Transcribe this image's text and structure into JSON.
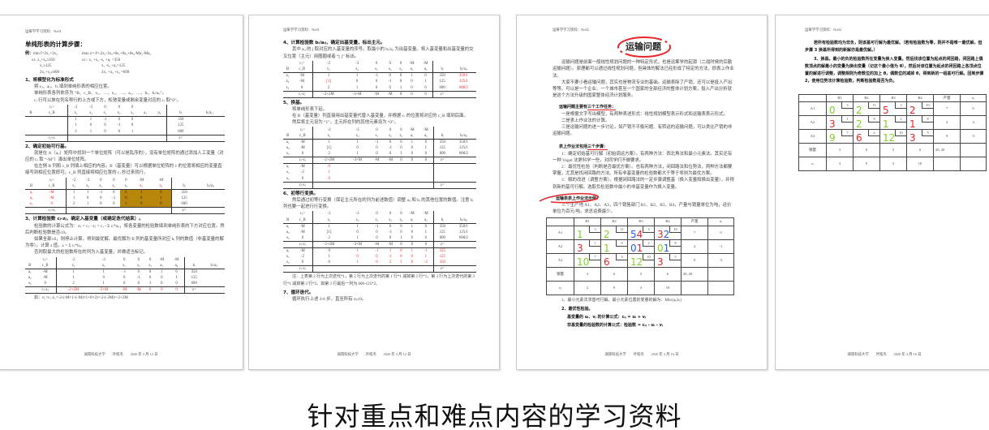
{
  "colors": {
    "handwriting_green": "#7ed321",
    "handwriting_red": "#e5262a",
    "handwriting_blue": "#1b5ef0",
    "highlight": "#b8860b"
  },
  "page1": {
    "header": "运筹学学习资料：No01",
    "title": "单纯形表的计算步骤：",
    "example": {
      "label": "例：",
      "left": [
        "min f=2x₁+3x₂",
        "s.t. x₁+x₂≥350",
        "x₁≥125",
        "2x₁+x₂≤600"
      ],
      "right": [
        "max z=-f=-2x₁-3x₂+0s₁+0s₂+0s₃-Ma₁-Ma₂",
        "s.t.: x₁ +x₂ -s₁ +a₁ =350",
        "x₁ -s₂ +a₂=125",
        "2x₁ +x₂ +s₃ =600"
      ]
    },
    "s1": "1、将模型化为标准形式",
    "p1": [
      "将 cⱼ、aᵢⱼ、bᵢ 填到单纯形表的相应位置。",
      "单纯形表各列依序为 “B、c_B、x₁、…、s₁、…、a₁、…、bᵢ、bᵢ/aᵢⱼ”。",
      "cⱼ 行可以放在列名称行的上方或下方，松弛变量或剩余变量对应的 cⱼ 取“0”。"
    ],
    "s2": "2、确定初始可行基。",
    "p2": [
      "就是在 A（aᵢⱼ）矩阵中找到一个单位矩阵（可以是乱序的），没有单位矩阵的通过添加人工变量（对应的 cⱼ 取 “-M”）凑出单位矩阵。",
      "在左侧 B 列和 c_B 列填上相应的内容。B（基变量）可以根据单位矩阵的 1 的位置将相应的变量直接写到相应位置即可。c_B 列直接将相应位置的 cⱼ 抄过来就行。"
    ],
    "s3": "3、计算检验数 cⱼ-zⱼ，确定入基变量（或确定迭代结束）。",
    "p3": [
      "检验数的计算公式为：σⱼ = cⱼ - zⱼ = cⱼ - Σ cᵢ*aᵢⱼ，将各变量的检验数填到单纯形表的下方对应位置。然后判断检验数是否≤0。",
      "如果全部≤0，则停止计算，得到最优解。最优解为 B 列的基变量所对应 bᵢ 列的数值（非基变量的解为零）。计算 z 值，z = Σ cᵢ*bᵢ。",
      "否则取最大的检验数所在的列为入基变量，并做适当标记。"
    ],
    "note": "如：σ₁=c₁-z₁=-2-(-M×1+(-M)×1+0×2)=-2-(-2M)=-2+2M",
    "footer": "湖南科技大学　　叶皓杰　　2020 年 3 月 12 日",
    "tables": [
      {
        "cj": [
          "",
          "cⱼ>",
          "-2",
          "-3",
          "0",
          "0",
          "0",
          "",
          "",
          "",
          ""
        ],
        "header": [
          "B",
          "c_B",
          "x₁",
          "x₂",
          "s₁",
          "s₂",
          "s₃",
          "a₁",
          "a₂",
          "bᵢ",
          "bᵢ/aᵢⱼ"
        ],
        "rows": [
          [
            "",
            "",
            "1",
            "1",
            "-1",
            "0",
            "0",
            "",
            "",
            "350",
            ""
          ],
          [
            "",
            "",
            "1",
            "0",
            "0",
            "-1",
            "0",
            "",
            "",
            "125",
            ""
          ],
          [
            "",
            "",
            "2",
            "1",
            "0",
            "0",
            "1",
            "",
            "",
            "600",
            ""
          ]
        ],
        "footer": [
          "",
          "cⱼ-zⱼ",
          "",
          "",
          "",
          "",
          "",
          "",
          "",
          "z=",
          ""
        ]
      },
      {
        "cj": [
          "",
          "cⱼ>",
          "-2",
          "-3",
          "0",
          "0",
          "0",
          "-M",
          "-M",
          "",
          ""
        ],
        "header": [
          "B",
          "c_B",
          "x₁",
          "x₂",
          "s₁",
          "s₂",
          "s₃",
          "a₁",
          "a₂",
          "bᵢ",
          "bᵢ/aᵢⱼ"
        ],
        "rows": [
          [
            "a₁",
            "-M",
            "1",
            "1",
            "-1",
            "0",
            "0",
            "1",
            "0",
            "350",
            ""
          ],
          [
            "a₂",
            "-M",
            "1",
            "0",
            "0",
            "-1",
            "0",
            "0",
            "1",
            "125",
            ""
          ],
          [
            "s₃",
            "0",
            "2",
            "1",
            "0",
            "0",
            "1",
            "0",
            "0",
            "600",
            ""
          ]
        ],
        "footer": [
          "",
          "cⱼ-zⱼ",
          "",
          "",
          "",
          "",
          "",
          "",
          "",
          "z=",
          ""
        ]
      },
      {
        "cj": [
          "",
          "cⱼ>",
          "-2",
          "-3",
          "0",
          "0",
          "0",
          "-M",
          "-M",
          "",
          ""
        ],
        "header": [
          "B",
          "c_B",
          "x₁",
          "x₂",
          "s₁",
          "s₂",
          "s₃",
          "a₁",
          "a₂",
          "bᵢ",
          "bᵢ/aᵢⱼ"
        ],
        "rows": [
          [
            "a₁",
            "-M",
            "1",
            "1",
            "-1",
            "0",
            "0",
            "1",
            "0",
            "350",
            ""
          ],
          [
            "a₂",
            "-M",
            "1",
            "0",
            "0",
            "-1",
            "0",
            "0",
            "1",
            "125",
            ""
          ],
          [
            "s₃",
            "0",
            "2",
            "1",
            "0",
            "0",
            "1",
            "0",
            "0",
            "600",
            ""
          ]
        ],
        "footer": [
          "",
          "cⱼ-zⱼ",
          "-2+2M",
          "-3+M",
          "-M",
          "-M",
          "0",
          "0",
          "0",
          "z=",
          ""
        ]
      }
    ]
  },
  "page2": {
    "header": "运筹学学习资料：No01",
    "s4": "4、计算检验数 bᵢ/aᵢⱼ，确定出基变量，标出主元。",
    "p4": "其中 aᵢⱼ 的 j 取对应的入基变量的序号。取最小的 bᵢ/aᵢⱼ 为出基变量。将入基变量和出基变量的交叉位置（主元）用圈圈或者 “[ ]” 标出。",
    "s5": "5、换基。",
    "p5": [
      "将单纯形表下延。",
      "在 B（基变量）列直接用出基变量代替入基变量，并根据 cⱼ 的位置将对应的 c_B 填到后面。",
      "然后将主元设为 “1”，主元所在列的其他元素设为 “0”。"
    ],
    "s6": "6、初等行变换。",
    "p6": "然后通过初等行变换（保证主元所在的列为前述数值）调整 aᵢⱼ 和 bᵢ 的其他位置的数值。注意 bᵢ 列也要一起进行行变换。",
    "note6": "注：上表第 2 行为上次迭代*1，第 2 行为上次迭代的第 1 行*1 减掉第 2 行*1，第 3 行为上次迭代的第 3 行*1 减掉第 2 行*2。如第 3 行最后一列为 600-125*2。",
    "s7": "7、循环迭代。",
    "p7": "循环执行上述 3-6 步，直至所有 σⱼ≤0。",
    "footer": "湖南科技大学　　叶皓杰　　2020 年 3 月 12 日",
    "tables": [
      {
        "cj": [
          "",
          "cⱼ>",
          "-2",
          "-3",
          "0",
          "0",
          "0",
          "-M",
          "-M",
          "",
          ""
        ],
        "header": [
          "B",
          "c_B",
          "x₁",
          "x₂",
          "s₁",
          "s₂",
          "s₃",
          "a₁",
          "a₂",
          "bᵢ",
          "bᵢ/aᵢⱼ"
        ],
        "rows": [
          [
            "a₁",
            "-M",
            "1",
            "1",
            "-1",
            "0",
            "0",
            "1",
            "0",
            "350",
            "350/1"
          ],
          [
            "a₂",
            "-M",
            "[1]",
            "0",
            "0",
            "-1",
            "0",
            "0",
            "1",
            "125",
            "125/1"
          ],
          [
            "s₃",
            "0",
            "2",
            "1",
            "0",
            "0",
            "1",
            "0",
            "0",
            "600",
            "600/2"
          ]
        ],
        "footer": [
          "",
          "cⱼ-zⱼ",
          "-2+2M",
          "-3+M",
          "-M",
          "-M",
          "0",
          "0",
          "0",
          "z=",
          ""
        ]
      },
      {
        "cj": [
          "",
          "cⱼ>",
          "-2",
          "-3",
          "0",
          "0",
          "0",
          "-M",
          "-M",
          "",
          ""
        ],
        "header": [
          "B",
          "c_B",
          "x₁",
          "x₂",
          "s₁",
          "s₂",
          "s₃",
          "a₁",
          "a₂",
          "bᵢ",
          "bᵢ/aᵢⱼ"
        ],
        "rows": [
          [
            "a₁",
            "-M",
            "1",
            "1",
            "-1",
            "0",
            "0",
            "1",
            "0",
            "350",
            "350/1"
          ],
          [
            "a₂",
            "-M",
            "[1]",
            "0",
            "0",
            "-1",
            "0",
            "0",
            "1",
            "125",
            "125/1"
          ],
          [
            "s₃",
            "0",
            "2",
            "1",
            "0",
            "0",
            "1",
            "0",
            "0",
            "600",
            "600/2"
          ]
        ],
        "footer": [
          "",
          "cⱼ-zⱼ",
          "-2+2M",
          "-3+M",
          "-M",
          "-M",
          "0",
          "0",
          "0",
          "z=",
          ""
        ],
        "lower": [
          [
            "a₁",
            "-M",
            "0",
            "",
            "",
            "",
            "",
            "",
            "",
            "",
            ""
          ],
          [
            "x₁",
            "-2",
            "1",
            "",
            "",
            "",
            "",
            "",
            "",
            "",
            ""
          ],
          [
            "s₃",
            "0",
            "0",
            "",
            "",
            "",
            "",
            "",
            "",
            "",
            ""
          ]
        ],
        "footer2": [
          "",
          "cⱼ-zⱼ",
          "",
          "",
          "",
          "",
          "",
          "",
          "",
          "z=",
          ""
        ]
      },
      {
        "cj": [
          "",
          "cⱼ>",
          "-2",
          "-3",
          "0",
          "0",
          "0",
          "-M",
          "-M",
          "",
          ""
        ],
        "header": [
          "B",
          "c_B",
          "x₁",
          "x₂",
          "s₁",
          "s₂",
          "s₃",
          "a₁",
          "a₂",
          "bᵢ",
          "bᵢ/aᵢⱼ"
        ],
        "rows": [
          [
            "a₁",
            "-M",
            "1",
            "1",
            "-1",
            "0",
            "0",
            "1",
            "0",
            "350",
            "350/1"
          ],
          [
            "a₂",
            "-M",
            "[1]",
            "0",
            "0",
            "-1",
            "0",
            "0",
            "1",
            "125",
            "125/1"
          ],
          [
            "s₃",
            "0",
            "2",
            "1",
            "0",
            "0",
            "1",
            "0",
            "0",
            "600",
            "600/2"
          ]
        ],
        "footer": [
          "",
          "cⱼ-zⱼ",
          "-2+2M",
          "-3+M",
          "-M",
          "-M",
          "0",
          "0",
          "0",
          "z=",
          ""
        ],
        "lower": [
          [
            "a₁",
            "-M",
            "0",
            "1",
            "-1",
            "1",
            "0",
            "1",
            "-1",
            "225",
            ""
          ],
          [
            "x₁",
            "-2",
            "1",
            "0",
            "0",
            "-1",
            "0",
            "0",
            "1",
            "125",
            ""
          ],
          [
            "s₃",
            "0",
            "0",
            "1",
            "0",
            "2",
            "1",
            "0",
            "-2",
            "350",
            ""
          ]
        ],
        "footer2": [
          "",
          "cⱼ-zⱼ",
          "",
          "",
          "",
          "",
          "",
          "",
          "",
          "z=",
          ""
        ]
      }
    ]
  },
  "page3": {
    "header": "运筹学学习资料：No02",
    "title": "运输问题",
    "paras": [
      "运输问题是前面一般线性规划问题的一种特定形式，也是运筹学的起源（二战时候的后勤运输问题）。原理都可以通过线性规划问题，但具体的解法已经形成了特定的方法，即表上作业法。",
      "大家不要小看运输问题，其实也是物流专业的基础。运输表除了产销，还可以是投入产出等等。可以是一个企业、一个城市甚至一个国家的全部经济的整体计划方案，投入产出分析就是这个方法升级的国家整体经济计划服务。"
    ],
    "tasks_heading_a": "运输问题主要有",
    "tasks_heading_b": "三个工作任务：",
    "tasks": [
      "一是根据文字写出模型，有两种表述形式：线性规划模型表示形式和运输表表示形式。",
      "二是表上作业法的计算。",
      "三是运输问题的进一步讨论，如产销不平衡问题、有转运的运输问题，可以类比产销的非运输问题。"
    ],
    "steps_heading_a": "表上作业法包括",
    "steps_heading_b": "三个步骤：",
    "steps": [
      "1：确定初始基可行解（初始调运方案）。有两种方法：西北角法和最小元素法。其实还有一种 Vogel 法更科学一些，对同学们不做要求。",
      "2：最优性检验（判断是否最优方案）。也有两种方法，闭回路法和位势法，两种方法都要掌握，尤其是找闭回路的方法。所有非基变量的检验数都大于等于零则为最优方案。",
      "3：解的改进（调整方案）。根据闭回路法的一定步骤调整基（换入变量和换出变量），并得到新的基可行解。选取负检验数中最小的非基变量作为换入变量。"
    ],
    "example_heading": "运输表表上作业法示例：",
    "example_intro": "三个生产地 A1、A2、A3，四个销售部门 B1、B2、B3、B4，产量与销量单位为吨，运价单位为百元/吨，求总运费最少。",
    "table": {
      "header": [
        "",
        "B1",
        "B2",
        "B3",
        "B4",
        "产量",
        "uᵢ"
      ],
      "rows": [
        {
          "label": "A1",
          "costs": [
            "3",
            "11",
            "3",
            "10"
          ],
          "marks": [
            [
              {
                "t": "1",
                "c": "g"
              }
            ],
            [
              {
                "t": "2",
                "c": "g"
              }
            ],
            [
              {
                "t": "5",
                "c": "b"
              },
              {
                "t": "4",
                "c": "r"
              }
            ],
            [
              {
                "t": "3",
                "c": "r"
              },
              {
                "t": "2",
                "c": "b"
              }
            ]
          ],
          "supply": "7",
          "u": "0"
        },
        {
          "label": "A2",
          "costs": [
            "1",
            "9",
            "2",
            "8"
          ],
          "marks": [
            [
              {
                "t": "3",
                "c": "r"
              }
            ],
            [
              {
                "t": "1",
                "c": "g"
              }
            ],
            [
              {
                "t": "0",
                "c": "b"
              },
              {
                "t": "1",
                "c": "r"
              }
            ],
            [
              {
                "t": "0",
                "c": "g"
              },
              {
                "t": "1",
                "c": "b"
              }
            ]
          ],
          "supply": "4",
          "u": "-1"
        },
        {
          "label": "A3",
          "costs": [
            "7",
            "4",
            "10",
            "5"
          ],
          "marks": [
            [
              {
                "t": "10",
                "c": "g"
              }
            ],
            [
              {
                "t": "6",
                "c": "r"
              }
            ],
            [
              {
                "t": "12",
                "c": "g"
              }
            ],
            [
              {
                "t": "3",
                "c": "r"
              }
            ]
          ],
          "supply": "9",
          "u": "-5"
        }
      ],
      "demand_label": "销量",
      "demand": [
        "3",
        "6",
        "5",
        "6"
      ],
      "total": "20, 20",
      "v_label": "vⱼ",
      "v": [
        "2",
        "9",
        "3",
        "10"
      ]
    },
    "notes": [
      "1、最小元素法求基可行解，最小元素位置的变量的解为：Min{aᵢ,bⱼ}",
      "2、最优性检验。",
      "基变量的 uᵢ、vⱼ 的计算公式：cᵢⱼ = uᵢ + vⱼ",
      "非基变量的检验数的计算公式：检验数 = cᵢⱼ - uᵢ - vⱼ"
    ],
    "footer": "湖南科技大学　　叶皓杰　　2020 年 3 月 16 日"
  },
  "page4": {
    "header": "运筹学学习资料：No02",
    "paras": [
      "若所有检验数均为非负，则该基可行解为最优解。（若有检验数为零，则并不是唯一最优解，但步骤 3 换基所得到的新解亦是最优解。）",
      "3、换基。最小的负的检验数所在变量为换入变量。然后找该位置为起点的闭回路，闭回路上偶数顶点的解最小的变量为换出变量（记这个最小值为 θ），然后对该位置为起点的闭回路上各顶点位置的解进行调整，调整规则为奇数位的加上 θ，偶数位的减掉 θ，得到新的一组基可行解。回到步骤 2，使用位势法计算检验数，判断检验数是否为负。"
    ],
    "table": {
      "header": [
        "",
        "B1",
        "B2",
        "B3",
        "B4",
        "产量",
        "uᵢ"
      ],
      "rows": [
        {
          "label": "A1",
          "costs": [
            "3",
            "11",
            "3",
            "10"
          ],
          "marks": [
            [
              {
                "t": "0",
                "c": "g"
              }
            ],
            [
              {
                "t": "2",
                "c": "g"
              }
            ],
            [
              {
                "t": "5",
                "c": "r"
              }
            ],
            [
              {
                "t": "2",
                "c": "r"
              }
            ]
          ],
          "supply": "7",
          "u": "0"
        },
        {
          "label": "A2",
          "costs": [
            "1",
            "9",
            "2",
            "8"
          ],
          "marks": [
            [
              {
                "t": "3",
                "c": "r"
              }
            ],
            [
              {
                "t": "2",
                "c": "g"
              }
            ],
            [
              {
                "t": "1",
                "c": "g"
              }
            ],
            [
              {
                "t": "1",
                "c": "r"
              }
            ]
          ],
          "supply": "4",
          "u": "-2"
        },
        {
          "label": "A3",
          "costs": [
            "7",
            "4",
            "10",
            "5"
          ],
          "marks": [
            [
              {
                "t": "9",
                "c": "g"
              }
            ],
            [
              {
                "t": "6",
                "c": "r"
              }
            ],
            [
              {
                "t": "12",
                "c": "g"
              }
            ],
            [
              {
                "t": "3",
                "c": "r"
              }
            ]
          ],
          "supply": "9",
          "u": "-5"
        }
      ],
      "demand_label": "销量",
      "demand": [
        "3",
        "6",
        "5",
        "6"
      ],
      "total": "20, 20",
      "v_label": "vⱼ",
      "v": [
        "3",
        "9",
        "3",
        "10"
      ]
    },
    "footer": "湖南科技大学　　叶皓杰　　2020 年 3 月 16 日"
  },
  "caption": "针对重点和难点内容的学习资料"
}
